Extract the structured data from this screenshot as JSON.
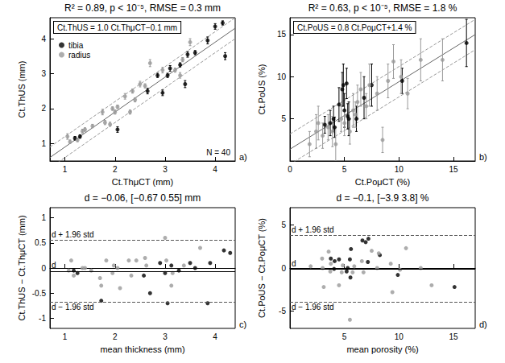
{
  "chart_data": [
    {
      "type": "scatter",
      "title": "R² = 0.89, p < 10⁻⁵, RMSE = 0.3 mm",
      "x_label": "Ct.ThμCT (mm)",
      "y_label": "Ct.ThUS (mm)",
      "xlim": [
        0.7,
        4.4
      ],
      "xticks": [
        1,
        2,
        3,
        4
      ],
      "ylim": [
        0.5,
        4.6
      ],
      "yticks": [
        1,
        2,
        3,
        4
      ],
      "grid": false,
      "legend": "upper left",
      "equation": "Ct.ThUS = 1.0 Ct.ThμCT−0.1 mm",
      "note": "N = 40",
      "panel": "a)",
      "fit": {
        "slope": 1.0,
        "intercept": -0.1,
        "rmse": 0.3
      },
      "series": [
        {
          "name": "tibia",
          "color": "#000000",
          "marker": "circle",
          "values": [
            [
              1.2,
              1.15
            ],
            [
              1.3,
              1.2
            ],
            [
              2.05,
              1.4
            ],
            [
              2.65,
              2.5
            ],
            [
              2.85,
              2.95
            ],
            [
              2.95,
              2.45
            ],
            [
              3.05,
              2.95
            ],
            [
              3.1,
              3.15
            ],
            [
              3.3,
              3.25
            ],
            [
              3.4,
              2.7
            ],
            [
              3.45,
              3.55
            ],
            [
              3.6,
              3.6
            ],
            [
              3.85,
              3.95
            ],
            [
              4.0,
              4.35
            ],
            [
              4.15,
              4.45
            ],
            [
              4.2,
              3.5
            ]
          ],
          "errors": [
            0.05,
            0.05,
            0.08,
            0.08,
            0.06,
            0.08,
            0.06,
            0.08,
            0.06,
            0.1,
            0.08,
            0.06,
            0.1,
            0.08,
            0.06,
            0.1
          ]
        },
        {
          "name": "radius",
          "color": "#999999",
          "marker": "circle",
          "values": [
            [
              1.05,
              1.2
            ],
            [
              1.1,
              1.05
            ],
            [
              1.25,
              1.1
            ],
            [
              1.35,
              1.35
            ],
            [
              1.4,
              1.4
            ],
            [
              1.55,
              1.5
            ],
            [
              1.75,
              1.9
            ],
            [
              1.8,
              1.6
            ],
            [
              1.9,
              1.55
            ],
            [
              1.95,
              2.0
            ],
            [
              2.0,
              1.9
            ],
            [
              2.05,
              2.05
            ],
            [
              2.2,
              2.35
            ],
            [
              2.3,
              1.9
            ],
            [
              2.35,
              2.5
            ],
            [
              2.5,
              2.7
            ],
            [
              2.6,
              2.65
            ],
            [
              2.7,
              3.3
            ],
            [
              2.95,
              3.1
            ],
            [
              3.2,
              3.1
            ],
            [
              3.3,
              2.95
            ],
            [
              3.5,
              3.9
            ],
            [
              3.35,
              3.4
            ],
            [
              2.4,
              2.25
            ]
          ],
          "errors": [
            0.08,
            0.05,
            0.05,
            0.06,
            0.05,
            0.05,
            0.08,
            0.06,
            0.06,
            0.05,
            0.06,
            0.05,
            0.08,
            0.06,
            0.06,
            0.08,
            0.06,
            0.1,
            0.08,
            0.06,
            0.08,
            0.1,
            0.06,
            0.06
          ]
        }
      ]
    },
    {
      "type": "scatter",
      "title": "R² = 0.63, p < 10⁻⁵, RMSE = 1.8 %",
      "x_label": "Ct.PoμCT (%)",
      "y_label": "Ct.PoUS (%)",
      "xlim": [
        0,
        17
      ],
      "xticks": [
        0,
        5,
        10,
        15
      ],
      "ylim": [
        0,
        17
      ],
      "yticks": [
        5,
        10,
        15
      ],
      "grid": false,
      "equation": "Ct.PoUS = 0.8 Ct.PoμCT+1.4 %",
      "panel": "b)",
      "fit": {
        "slope": 0.8,
        "intercept": 1.4,
        "rmse": 1.8
      },
      "series": [
        {
          "name": "tibia",
          "color": "#000000",
          "marker": "circle",
          "values": [
            [
              3.2,
              4.3
            ],
            [
              3.7,
              4.5
            ],
            [
              4.0,
              5.0
            ],
            [
              4.1,
              4.0
            ],
            [
              4.5,
              6.7
            ],
            [
              4.8,
              8.5
            ],
            [
              4.9,
              9.0
            ],
            [
              5.0,
              6.0
            ],
            [
              5.3,
              5.3
            ],
            [
              5.4,
              5.0
            ],
            [
              6.1,
              5.0
            ],
            [
              6.8,
              7.5
            ],
            [
              7.5,
              9.0
            ],
            [
              10.3,
              9.5
            ],
            [
              16.2,
              14.0
            ],
            [
              5.2,
              9.2
            ]
          ],
          "errors": [
            1.0,
            1.5,
            1.5,
            1.2,
            2.0,
            2.0,
            2.5,
            2.0,
            1.5,
            2.0,
            1.5,
            2.5,
            2.5,
            1.5,
            2.8,
            1.8
          ]
        },
        {
          "name": "radius",
          "color": "#999999",
          "marker": "circle",
          "values": [
            [
              1.8,
              2.0
            ],
            [
              2.4,
              3.5
            ],
            [
              2.6,
              4.5
            ],
            [
              3.0,
              3.0
            ],
            [
              3.5,
              4.0
            ],
            [
              3.9,
              3.5
            ],
            [
              4.2,
              2.0
            ],
            [
              4.7,
              5.0
            ],
            [
              5.0,
              4.5
            ],
            [
              5.5,
              3.5
            ],
            [
              5.8,
              6.0
            ],
            [
              6.2,
              7.0
            ],
            [
              6.5,
              8.5
            ],
            [
              7.0,
              6.5
            ],
            [
              7.3,
              9.0
            ],
            [
              8.0,
              8.0
            ],
            [
              8.5,
              2.5
            ],
            [
              9.5,
              11.8
            ],
            [
              10.2,
              10.0
            ],
            [
              12.0,
              12.0
            ],
            [
              10.8,
              8.0
            ],
            [
              14.0,
              12.0
            ],
            [
              9.0,
              9.5
            ],
            [
              6.0,
              5.5
            ]
          ],
          "errors": [
            1.5,
            2.0,
            2.0,
            1.5,
            1.5,
            1.8,
            2.0,
            1.5,
            1.5,
            1.5,
            2.0,
            2.0,
            2.0,
            1.5,
            2.5,
            2.0,
            1.5,
            2.0,
            2.0,
            2.5,
            1.8,
            2.5,
            2.0,
            1.5
          ]
        }
      ]
    },
    {
      "type": "scatter",
      "title": "d = −0.06, [−0.67 0.55] mm",
      "x_label": "mean thickness (mm)",
      "y_label": "Ct.ThUS − Ct.ThμCT (mm)",
      "xlim": [
        0.7,
        4.4
      ],
      "xticks": [
        1,
        2,
        3,
        4
      ],
      "ylim": [
        -1.2,
        1.2
      ],
      "yticks": [
        -1,
        -0.5,
        0,
        0.5,
        1
      ],
      "grid": false,
      "panel": "c)",
      "mean_line": {
        "value": -0.06,
        "label": "d"
      },
      "limits": [
        {
          "value": 0.55,
          "label": "d + 1.96 std"
        },
        {
          "value": -0.67,
          "label": "d − 1.96 std"
        }
      ],
      "series": [
        {
          "color": "#000000",
          "marker": "circle",
          "values": [
            [
              1.175,
              -0.05
            ],
            [
              1.25,
              -0.1
            ],
            [
              1.725,
              -0.65
            ],
            [
              2.575,
              -0.15
            ],
            [
              2.9,
              0.1
            ],
            [
              2.7,
              -0.5
            ],
            [
              3.0,
              -0.1
            ],
            [
              3.125,
              0.05
            ],
            [
              3.275,
              -0.05
            ],
            [
              3.05,
              -0.7
            ],
            [
              3.5,
              0.1
            ],
            [
              3.6,
              0.0
            ],
            [
              3.9,
              0.1
            ],
            [
              4.175,
              0.35
            ],
            [
              4.3,
              0.3
            ],
            [
              3.85,
              -0.7
            ]
          ]
        },
        {
          "color": "#999999",
          "marker": "circle",
          "values": [
            [
              1.125,
              0.15
            ],
            [
              1.075,
              -0.05
            ],
            [
              1.175,
              -0.15
            ],
            [
              1.35,
              0.0
            ],
            [
              1.4,
              0.0
            ],
            [
              1.525,
              -0.05
            ],
            [
              1.825,
              0.15
            ],
            [
              1.7,
              -0.2
            ],
            [
              1.725,
              -0.35
            ],
            [
              1.975,
              0.05
            ],
            [
              1.95,
              -0.1
            ],
            [
              2.05,
              0.0
            ],
            [
              2.275,
              0.15
            ],
            [
              2.1,
              -0.4
            ],
            [
              2.425,
              0.15
            ],
            [
              2.6,
              0.2
            ],
            [
              2.625,
              0.05
            ],
            [
              3.0,
              0.6
            ],
            [
              3.025,
              0.15
            ],
            [
              3.15,
              -0.1
            ],
            [
              3.125,
              -0.35
            ],
            [
              3.7,
              0.4
            ],
            [
              3.375,
              0.05
            ],
            [
              2.325,
              -0.15
            ]
          ]
        }
      ]
    },
    {
      "type": "scatter",
      "title": "d = −0.1, [−3.9 3.8] %",
      "x_label": "mean porosity (%)",
      "y_label": "Ct.PoUS − Ct.PoμCT (%)",
      "xlim": [
        0,
        17
      ],
      "xticks": [
        5,
        10,
        15
      ],
      "ylim": [
        -7,
        7
      ],
      "yticks": [
        -5,
        0,
        5
      ],
      "grid": false,
      "panel": "d)",
      "mean_line": {
        "value": -0.1,
        "label": "d"
      },
      "limits": [
        {
          "value": 3.8,
          "label": "d + 1.96 std"
        },
        {
          "value": -3.9,
          "label": "d − 1.96 std"
        }
      ],
      "series": [
        {
          "color": "#000000",
          "marker": "circle",
          "values": [
            [
              3.75,
              1.1
            ],
            [
              4.1,
              0.8
            ],
            [
              4.5,
              1.0
            ],
            [
              4.05,
              -0.1
            ],
            [
              5.6,
              2.2
            ],
            [
              6.65,
              3.2
            ],
            [
              6.95,
              3.0
            ],
            [
              5.5,
              1.0
            ],
            [
              5.3,
              0.0
            ],
            [
              5.2,
              -0.4
            ],
            [
              5.55,
              -1.1
            ],
            [
              7.15,
              0.7
            ],
            [
              8.25,
              1.5
            ],
            [
              9.9,
              -0.8
            ],
            [
              15.1,
              -2.2
            ],
            [
              7.2,
              3.4
            ]
          ]
        },
        {
          "color": "#999999",
          "marker": "circle",
          "values": [
            [
              1.9,
              0.2
            ],
            [
              2.95,
              1.1
            ],
            [
              3.55,
              1.9
            ],
            [
              3.0,
              0.0
            ],
            [
              3.75,
              0.5
            ],
            [
              3.7,
              -0.4
            ],
            [
              3.1,
              -2.2
            ],
            [
              4.85,
              0.3
            ],
            [
              4.75,
              -0.5
            ],
            [
              4.5,
              -2.0
            ],
            [
              5.9,
              0.2
            ],
            [
              6.6,
              0.8
            ],
            [
              7.5,
              2.0
            ],
            [
              6.75,
              -0.5
            ],
            [
              8.15,
              1.7
            ],
            [
              8.0,
              0.0
            ],
            [
              5.5,
              -6.0
            ],
            [
              10.65,
              2.3
            ],
            [
              10.1,
              -0.2
            ],
            [
              12.0,
              0.0
            ],
            [
              9.4,
              -2.8
            ],
            [
              13.0,
              -2.0
            ],
            [
              9.25,
              0.5
            ],
            [
              5.75,
              -0.5
            ]
          ]
        }
      ]
    }
  ]
}
